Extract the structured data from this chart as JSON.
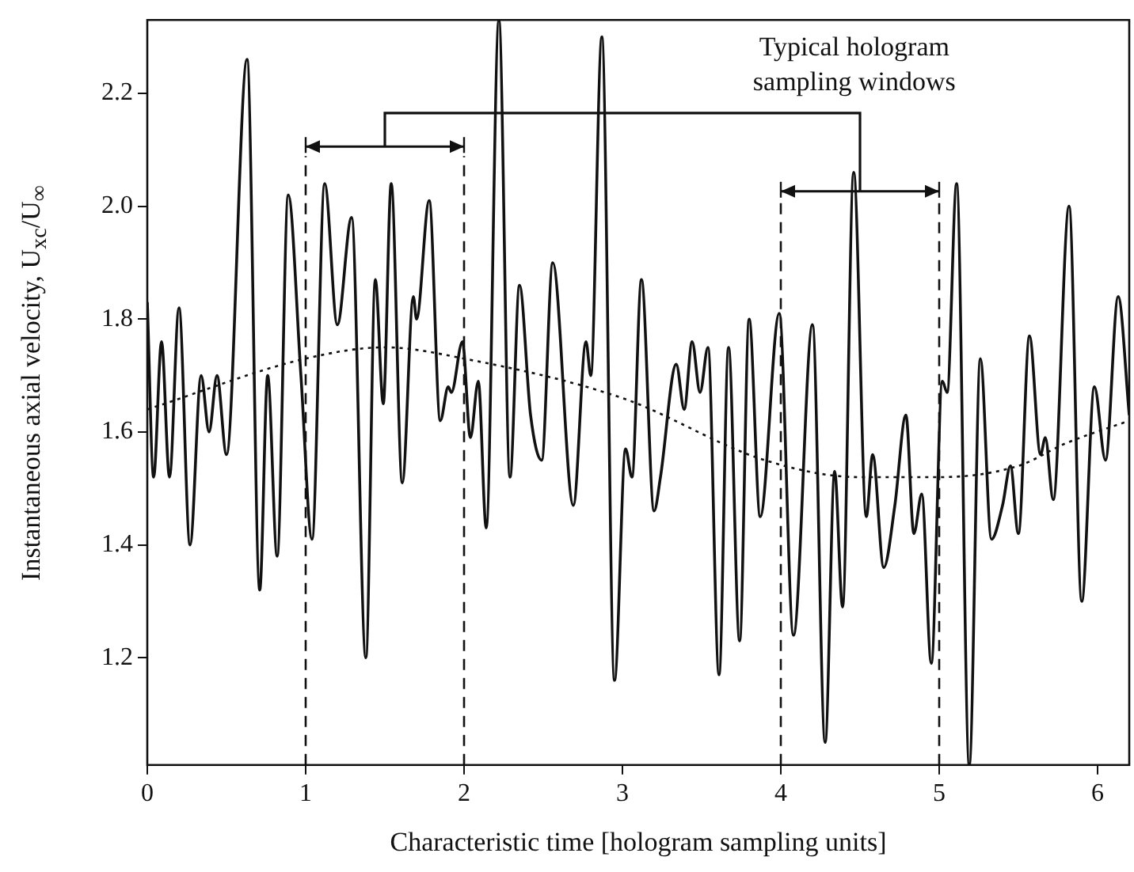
{
  "chart_data": {
    "type": "line",
    "xlabel": "Characteristic time [hologram sampling units]",
    "ylabel": "Instantaneous axial velocity, U$_{xc}$/U$_{∞}$",
    "xlim": [
      0,
      6.2
    ],
    "xticks": [
      0,
      1,
      2,
      3,
      4,
      5,
      6
    ],
    "ylim": [
      1.01,
      2.33
    ],
    "yticks": [
      1.2,
      1.4,
      1.6,
      1.8,
      {
        "value": 2,
        "label": "2.0"
      },
      2.2
    ],
    "grid": false,
    "legend": false,
    "marker": "none",
    "series": [
      {
        "color": "#111111",
        "line_style": "solid",
        "x": [
          0,
          0.04,
          0.09,
          0.14,
          0.2,
          0.27,
          0.34,
          0.39,
          0.44,
          0.5,
          0.63,
          0.71,
          0.76,
          0.82,
          0.89,
          0.97,
          1.04,
          1.12,
          1.2,
          1.29,
          1.38,
          1.44,
          1.49,
          1.54,
          1.61,
          1.68,
          1.7,
          1.78,
          1.85,
          1.9,
          1.92,
          1.99,
          2.04,
          2.09,
          2.14,
          2.22,
          2.29,
          2.35,
          2.42,
          2.49,
          2.56,
          2.69,
          2.77,
          2.8,
          2.87,
          2.95,
          3.02,
          3.06,
          3.12,
          3.2,
          3.24,
          3.34,
          3.39,
          3.44,
          3.49,
          3.54,
          3.61,
          3.67,
          3.74,
          3.8,
          3.87,
          3.99,
          4.08,
          4.2,
          4.28,
          4.34,
          4.39,
          4.46,
          4.54,
          4.58,
          4.65,
          4.72,
          4.79,
          4.84,
          4.89,
          4.95,
          5.02,
          5.05,
          5.11,
          5.19,
          5.26,
          5.33,
          5.4,
          5.45,
          5.5,
          5.57,
          5.64,
          5.67,
          5.72,
          5.82,
          5.9,
          5.98,
          6.05,
          6.13,
          6.2
        ],
        "values": [
          1.83,
          1.52,
          1.76,
          1.52,
          1.82,
          1.4,
          1.7,
          1.6,
          1.7,
          1.56,
          2.26,
          1.32,
          1.7,
          1.38,
          2.02,
          1.7,
          1.41,
          2.04,
          1.79,
          1.98,
          1.2,
          1.87,
          1.65,
          2.04,
          1.51,
          1.84,
          1.8,
          2.01,
          1.62,
          1.68,
          1.67,
          1.76,
          1.59,
          1.69,
          1.43,
          2.33,
          1.52,
          1.86,
          1.63,
          1.55,
          1.9,
          1.47,
          1.76,
          1.7,
          2.3,
          1.16,
          1.57,
          1.52,
          1.87,
          1.46,
          1.52,
          1.72,
          1.64,
          1.76,
          1.67,
          1.75,
          1.17,
          1.75,
          1.23,
          1.8,
          1.45,
          1.81,
          1.24,
          1.79,
          1.05,
          1.53,
          1.29,
          2.06,
          1.45,
          1.56,
          1.36,
          1.47,
          1.63,
          1.42,
          1.49,
          1.19,
          1.69,
          1.67,
          2.04,
          1.01,
          1.73,
          1.41,
          1.47,
          1.54,
          1.42,
          1.77,
          1.56,
          1.59,
          1.48,
          2.0,
          1.3,
          1.68,
          1.55,
          1.84,
          1.63
        ]
      },
      {
        "color": "#111111",
        "line_style": "dotted",
        "x": [
          0,
          1,
          1.5,
          2,
          3,
          3.9,
          4.5,
          5,
          5.5,
          5.8,
          6.2
        ],
        "values": [
          1.64,
          1.73,
          1.75,
          1.73,
          1.66,
          1.55,
          1.52,
          1.52,
          1.54,
          1.58,
          1.62
        ]
      }
    ],
    "ref_lines": [
      {
        "axis": "x",
        "value": 1,
        "line_style": "dashed"
      },
      {
        "axis": "x",
        "value": 2,
        "line_style": "dashed"
      },
      {
        "axis": "x",
        "value": 4,
        "line_style": "dashed"
      },
      {
        "axis": "x",
        "value": 5,
        "line_style": "dashed"
      }
    ],
    "annotations": [
      "Typical hologram\nsampling windows"
    ]
  }
}
